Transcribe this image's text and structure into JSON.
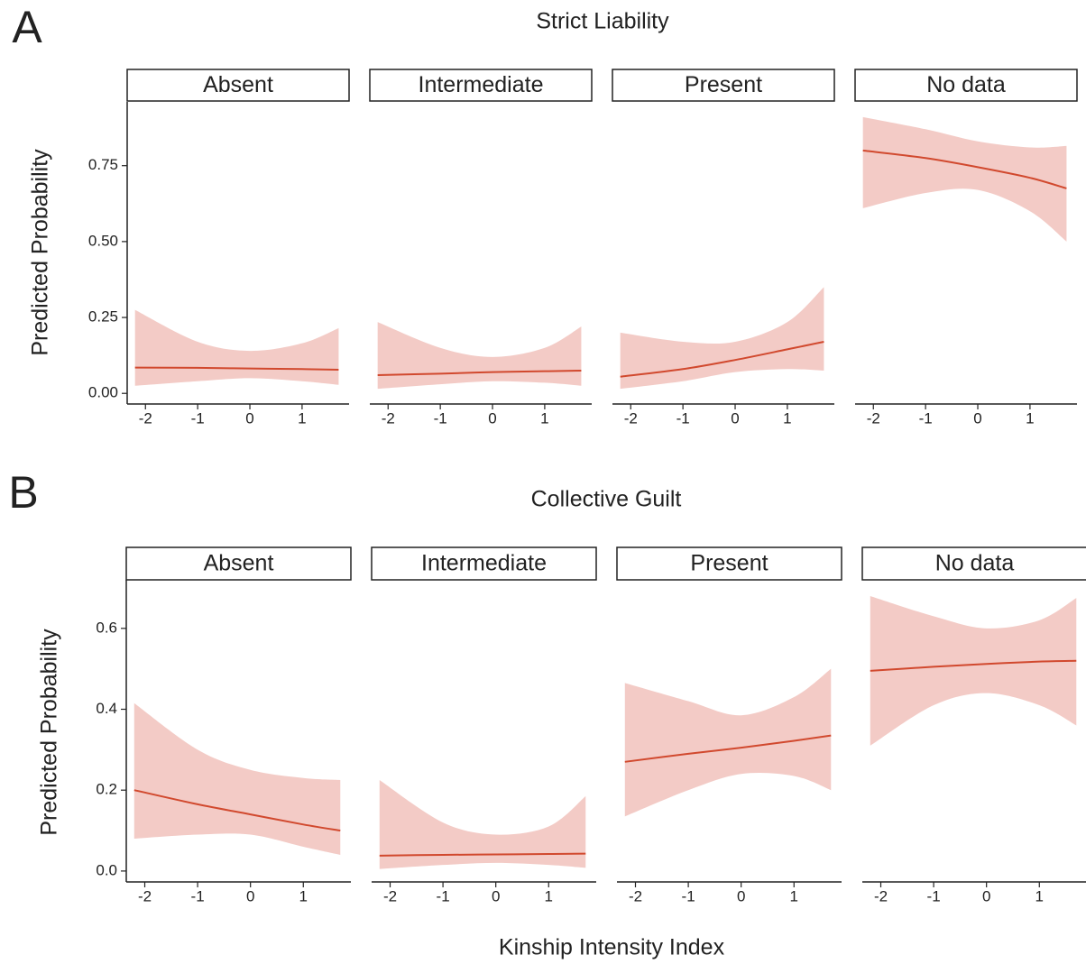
{
  "chart_data": [
    {
      "type": "ribbon-line",
      "panel_label": "A",
      "title": "Strict Liability",
      "y_label": "Predicted Probability",
      "color": "#d1492e",
      "band_color": "#f3cbc6",
      "x": [
        -2.2,
        -1,
        0,
        1,
        1.7
      ],
      "xlim": [
        -2.35,
        1.9
      ],
      "xticks": [
        -2,
        -1,
        0,
        1
      ],
      "ylim": [
        -0.035,
        0.96
      ],
      "yticks": [
        {
          "value": 0,
          "label": "0.00"
        },
        0.25,
        {
          "value": 0.5,
          "label": "0.50"
        },
        0.75
      ],
      "facets": [
        {
          "name": "Absent",
          "values": [
            0.085,
            0.084,
            0.082,
            0.08,
            0.078
          ],
          "lower": [
            0.025,
            0.04,
            0.05,
            0.04,
            0.028
          ],
          "upper": [
            0.275,
            0.17,
            0.14,
            0.165,
            0.215
          ]
        },
        {
          "name": "Intermediate",
          "values": [
            0.06,
            0.065,
            0.07,
            0.073,
            0.075
          ],
          "lower": [
            0.015,
            0.03,
            0.04,
            0.035,
            0.025
          ],
          "upper": [
            0.235,
            0.15,
            0.12,
            0.15,
            0.22
          ]
        },
        {
          "name": "Present",
          "values": [
            0.055,
            0.08,
            0.11,
            0.145,
            0.17
          ],
          "lower": [
            0.015,
            0.04,
            0.07,
            0.08,
            0.075
          ],
          "upper": [
            0.2,
            0.17,
            0.17,
            0.235,
            0.35
          ]
        },
        {
          "name": "No data",
          "values": [
            0.8,
            0.775,
            0.745,
            0.71,
            0.675
          ],
          "lower": [
            0.61,
            0.66,
            0.67,
            0.6,
            0.5
          ],
          "upper": [
            0.91,
            0.87,
            0.83,
            0.81,
            0.815
          ]
        }
      ]
    },
    {
      "type": "ribbon-line",
      "panel_label": "B",
      "title": "Collective Guilt",
      "y_label": "Predicted Probability",
      "x_label": "Kinship Intensity Index",
      "color": "#d1492e",
      "band_color": "#f3cbc6",
      "x": [
        -2.2,
        -1,
        0,
        1,
        1.7
      ],
      "xlim": [
        -2.35,
        1.9
      ],
      "xticks": [
        -2,
        -1,
        0,
        1
      ],
      "ylim": [
        -0.027,
        0.72
      ],
      "yticks": [
        {
          "value": 0,
          "label": "0.0"
        },
        0.2,
        0.4,
        0.6
      ],
      "facets": [
        {
          "name": "Absent",
          "values": [
            0.2,
            0.165,
            0.14,
            0.115,
            0.1
          ],
          "lower": [
            0.08,
            0.09,
            0.09,
            0.06,
            0.04
          ],
          "upper": [
            0.415,
            0.3,
            0.25,
            0.23,
            0.225
          ]
        },
        {
          "name": "Intermediate",
          "values": [
            0.038,
            0.04,
            0.041,
            0.042,
            0.043
          ],
          "lower": [
            0.005,
            0.015,
            0.02,
            0.015,
            0.008
          ],
          "upper": [
            0.225,
            0.12,
            0.09,
            0.11,
            0.185
          ]
        },
        {
          "name": "Present",
          "values": [
            0.27,
            0.29,
            0.305,
            0.322,
            0.335
          ],
          "lower": [
            0.135,
            0.2,
            0.24,
            0.235,
            0.2
          ],
          "upper": [
            0.465,
            0.42,
            0.385,
            0.43,
            0.5
          ]
        },
        {
          "name": "No data",
          "values": [
            0.495,
            0.505,
            0.512,
            0.518,
            0.52
          ],
          "lower": [
            0.31,
            0.41,
            0.44,
            0.41,
            0.36
          ],
          "upper": [
            0.68,
            0.63,
            0.6,
            0.62,
            0.675
          ]
        }
      ]
    }
  ]
}
